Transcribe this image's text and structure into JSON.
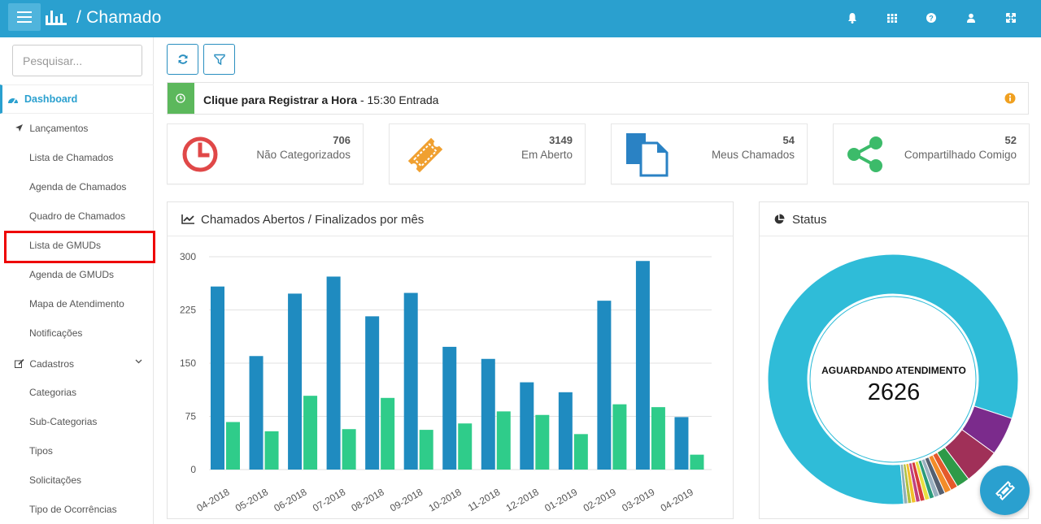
{
  "topbar": {
    "breadcrumb": "/  Chamado"
  },
  "sidebar": {
    "search_placeholder": "Pesquisar...",
    "dashboard": "Dashboard",
    "lancamentos": {
      "label": "Lançamentos",
      "items": [
        "Lista de Chamados",
        "Agenda de Chamados",
        "Quadro de Chamados",
        "Lista de GMUDs",
        "Agenda de GMUDs",
        "Mapa de Atendimento",
        "Notificações"
      ]
    },
    "cadastros": {
      "label": "Cadastros",
      "items": [
        "Categorias",
        "Sub-Categorias",
        "Tipos",
        "Solicitações",
        "Tipo de Ocorrências"
      ]
    }
  },
  "banner": {
    "bold": "Clique para Registrar a Hora",
    "rest": " - 15:30 Entrada"
  },
  "cards": [
    {
      "num": "706",
      "label": "Não Categorizados",
      "icon": "clock-icon",
      "color": "#e04848"
    },
    {
      "num": "3149",
      "label": "Em Aberto",
      "icon": "ticket-icon",
      "color": "#f0a030"
    },
    {
      "num": "54",
      "label": "Meus Chamados",
      "icon": "documents-icon",
      "color": "#2a82c4"
    },
    {
      "num": "52",
      "label": "Compartilhado Comigo",
      "icon": "share-icon",
      "color": "#3cbb6a"
    }
  ],
  "bar_panel_title": "Chamados Abertos / Finalizados por mês",
  "status_panel_title": "Status",
  "status_center": {
    "label": "AGUARDANDO ATENDIMENTO",
    "value": "2626"
  },
  "colors": {
    "primary": "#2aa0cf",
    "bar_open": "#1f8bc0",
    "bar_closed": "#2fcc8a"
  },
  "chart_data": [
    {
      "type": "bar",
      "title": "Chamados Abertos / Finalizados por mês",
      "categories": [
        "04-2018",
        "05-2018",
        "06-2018",
        "07-2018",
        "08-2018",
        "09-2018",
        "10-2018",
        "11-2018",
        "12-2018",
        "01-2019",
        "02-2019",
        "03-2019",
        "04-2019"
      ],
      "series": [
        {
          "values": [
            258,
            160,
            248,
            272,
            216,
            249,
            173,
            156,
            123,
            109,
            238,
            294,
            74
          ]
        },
        {
          "values": [
            67,
            54,
            104,
            57,
            101,
            56,
            65,
            82,
            77,
            50,
            92,
            88,
            21
          ]
        }
      ],
      "ylim": [
        0,
        300
      ],
      "yticks": [
        0,
        75,
        150,
        225,
        300
      ],
      "grid": true
    },
    {
      "type": "pie",
      "title": "Status",
      "center_label": "AGUARDANDO ATENDIMENTO",
      "center_value": 2626,
      "slices": [
        {
          "value": 2626,
          "color": "#2fbcd8"
        },
        {
          "value": 160,
          "color": "#7b2b8c"
        },
        {
          "value": 150,
          "color": "#a03058"
        },
        {
          "value": 55,
          "color": "#2e9a48"
        },
        {
          "value": 30,
          "color": "#e55a2b"
        },
        {
          "value": 28,
          "color": "#f28c28"
        },
        {
          "value": 25,
          "color": "#556070"
        },
        {
          "value": 22,
          "color": "#9ab0c0"
        },
        {
          "value": 20,
          "color": "#2a9a7a"
        },
        {
          "value": 20,
          "color": "#e8e040"
        },
        {
          "value": 20,
          "color": "#d83a3a"
        },
        {
          "value": 18,
          "color": "#c04080"
        },
        {
          "value": 18,
          "color": "#f2c02a"
        },
        {
          "value": 16,
          "color": "#b0c040"
        },
        {
          "value": 16,
          "color": "#8fb0b8"
        }
      ]
    }
  ]
}
